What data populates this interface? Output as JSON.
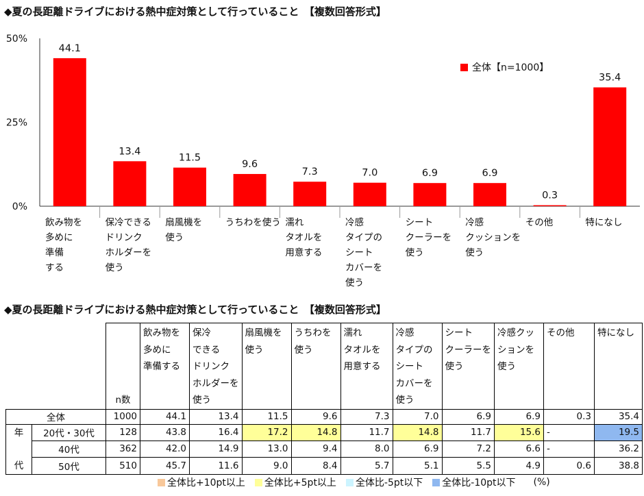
{
  "chart_title": "◆夏の長距離ドライブにおける熱中症対策として行っていること　【複数回答形式】",
  "chart_data": {
    "type": "bar",
    "title": "◆夏の長距離ドライブにおける熱中症対策として行っていること　【複数回答形式】",
    "categories": [
      "飲み物を\n多めに\n準備\nする",
      "保冷できる\nドリンク\nホルダーを\n使う",
      "扇風機を\n使う",
      "うちわを使う",
      "濡れ\nタオルを\n用意する",
      "冷感\nタイプの\nシート\nカバーを\n使う",
      "シート\nクーラーを\n使う",
      "冷感\nクッションを\n使う",
      "その他",
      "特になし"
    ],
    "series": [
      {
        "name": "全体【n=1000】",
        "values": [
          44.1,
          13.4,
          11.5,
          9.6,
          7.3,
          7.0,
          6.9,
          6.9,
          0.3,
          35.4
        ]
      }
    ],
    "ylim": [
      0,
      50
    ],
    "yticks": [
      "0%",
      "25%",
      "50%"
    ],
    "bar_color": "#ff0000",
    "legend_position": "top-right"
  },
  "table": {
    "title": "◆夏の長距離ドライブにおける熱中症対策として行っていること　【複数回答形式】",
    "n_header": "n数",
    "headers": [
      "飲み物を\n多めに\n準備する",
      "保冷\nできる\nドリンク\nホルダーを\n使う",
      "扇風機を\n使う",
      "うちわを\n使う",
      "濡れ\nタオルを\n用意する",
      "冷感\nタイプの\nシート\nカバーを\n使う",
      "シート\nクーラーを\n使う",
      "冷感クッ\nションを\n使う",
      "その他",
      "特になし"
    ],
    "age_group_label": "年\n\n代",
    "rows": [
      {
        "label": "全体",
        "n": "1000",
        "values": [
          "44.1",
          "13.4",
          "11.5",
          "9.6",
          "7.3",
          "7.0",
          "6.9",
          "6.9",
          "0.3",
          "35.4"
        ],
        "highlight": [
          "",
          "",
          "",
          "",
          "",
          "",
          "",
          "",
          "",
          ""
        ]
      },
      {
        "label": "20代・30代",
        "n": "128",
        "values": [
          "43.8",
          "16.4",
          "17.2",
          "14.8",
          "11.7",
          "14.8",
          "11.7",
          "15.6",
          "-",
          "19.5"
        ],
        "highlight": [
          "",
          "",
          "y",
          "y",
          "",
          "y",
          "",
          "y",
          "",
          "b"
        ]
      },
      {
        "label": "40代",
        "n": "362",
        "values": [
          "42.0",
          "14.9",
          "13.0",
          "9.4",
          "8.0",
          "6.9",
          "7.2",
          "6.6",
          "-",
          "36.2"
        ],
        "highlight": [
          "",
          "",
          "",
          "",
          "",
          "",
          "",
          "",
          "",
          ""
        ]
      },
      {
        "label": "50代",
        "n": "510",
        "values": [
          "45.7",
          "11.6",
          "9.0",
          "8.4",
          "5.7",
          "5.1",
          "5.5",
          "4.9",
          "0.6",
          "38.8"
        ],
        "highlight": [
          "",
          "",
          "",
          "",
          "",
          "",
          "",
          "",
          "",
          ""
        ]
      }
    ]
  },
  "table_legend": {
    "items": [
      {
        "label": "全体比+10pt以上",
        "color": "#f8c89a"
      },
      {
        "label": "全体比+5pt以上",
        "color": "#ffff99"
      },
      {
        "label": "全体比-5pt以下",
        "color": "#ccf4ff"
      },
      {
        "label": "全体比-10pt以下",
        "color": "#8fb8f0"
      }
    ],
    "unit": "(%)"
  }
}
